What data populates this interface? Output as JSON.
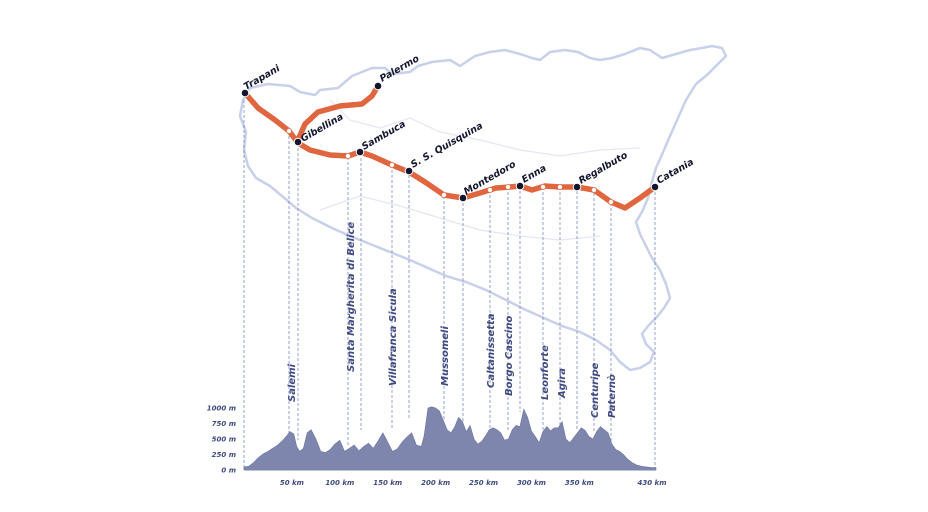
{
  "colors": {
    "route": "#e0663f",
    "island_outline": "#c9d0ea",
    "profile_fill": "#7e86ad",
    "guide_line": "#7d8bbf",
    "label_text": "#3f4a80",
    "city_text": "#12152e"
  },
  "route_cities": [
    {
      "id": "trapani",
      "name": "Trapani"
    },
    {
      "id": "palermo",
      "name": "Palermo"
    },
    {
      "id": "gibellina",
      "name": "Gibellina"
    },
    {
      "id": "sambuca",
      "name": "Sambuca"
    },
    {
      "id": "quisquina",
      "name": "S. S. Quisquina"
    },
    {
      "id": "montedoro",
      "name": "Montedoro"
    },
    {
      "id": "enna",
      "name": "Enna"
    },
    {
      "id": "regalbuto",
      "name": "Regalbuto"
    },
    {
      "id": "catania",
      "name": "Catania"
    }
  ],
  "profile_towns": [
    "Salemi",
    "Santa Margherita di Belice",
    "Villafranca Sicula",
    "Mussomeli",
    "Caltanissetta",
    "Borgo Cascino",
    "Leonforte",
    "Agira",
    "Centuripe",
    "Paternò"
  ],
  "chart_data": {
    "type": "area",
    "title": "",
    "xlabel": "",
    "ylabel": "",
    "y_unit": "m",
    "x_unit": "km",
    "ylim": [
      0,
      1000
    ],
    "xlim": [
      0,
      430
    ],
    "y_ticks": [
      "0 m",
      "250 m",
      "500 m",
      "750 m",
      "1000 m"
    ],
    "x_ticks": [
      "50 km",
      "100 km",
      "150 km",
      "200 km",
      "250 km",
      "300 km",
      "350 km",
      "430 km"
    ],
    "series": [
      {
        "distance_km": [
          0,
          5,
          10,
          15,
          20,
          25,
          30,
          35,
          40,
          45,
          48,
          52,
          55,
          58,
          62,
          66,
          70,
          75,
          80,
          85,
          90,
          95,
          100,
          105,
          110,
          115,
          120,
          125,
          130,
          135,
          140,
          145,
          150,
          155,
          160,
          165,
          170,
          175,
          180,
          185,
          188,
          192,
          196,
          200,
          204,
          208,
          212,
          216,
          220,
          224,
          228,
          232,
          236,
          240,
          244,
          248,
          252,
          256,
          260,
          264,
          268,
          272,
          276,
          280,
          284,
          288,
          292,
          296,
          300,
          304,
          308,
          312,
          316,
          320,
          324,
          328,
          332,
          336,
          340,
          344,
          348,
          352,
          356,
          360,
          364,
          368,
          372,
          376,
          380,
          384,
          388,
          392,
          396,
          400,
          405,
          410,
          415,
          420,
          425,
          430
        ],
        "elevation_m": [
          50,
          60,
          120,
          200,
          260,
          300,
          350,
          400,
          470,
          560,
          620,
          580,
          380,
          300,
          350,
          600,
          650,
          500,
          300,
          280,
          330,
          420,
          480,
          300,
          350,
          400,
          310,
          380,
          430,
          350,
          470,
          600,
          450,
          300,
          340,
          450,
          530,
          600,
          400,
          380,
          550,
          1000,
          1020,
          1000,
          950,
          800,
          650,
          600,
          700,
          850,
          780,
          620,
          720,
          500,
          420,
          460,
          550,
          650,
          680,
          650,
          600,
          480,
          500,
          650,
          720,
          700,
          980,
          850,
          630,
          540,
          440,
          620,
          700,
          630,
          680,
          680,
          780,
          500,
          440,
          520,
          600,
          680,
          640,
          540,
          500,
          620,
          700,
          650,
          600,
          420,
          330,
          300,
          250,
          180,
          120,
          80,
          60,
          50,
          40,
          40
        ]
      }
    ]
  }
}
